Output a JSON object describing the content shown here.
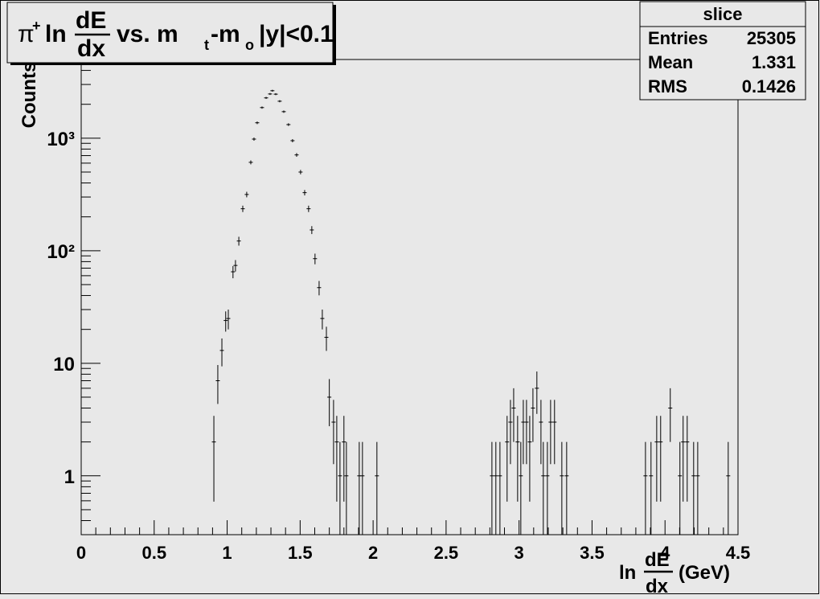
{
  "chart_data": {
    "type": "scatter",
    "title": {
      "pi": "π",
      "charge": "+",
      "ln": "ln",
      "num": "dE",
      "den": "dx",
      "vs": "vs. m",
      "sub1": "t",
      "dash": "-m",
      "sub2": "o",
      "cut": "|y|<0.1"
    },
    "x_label": {
      "ln": "ln",
      "num": "dE",
      "den": "dx",
      "unit": "(GeV)"
    },
    "y_label": "Counts",
    "stats": {
      "title": "slice",
      "rows": [
        [
          "Entries",
          "25305"
        ],
        [
          "Mean",
          "1.331"
        ],
        [
          "RMS",
          "0.1426"
        ]
      ]
    },
    "log_y": true,
    "color": "#000000",
    "xlim": [
      0,
      4.5
    ],
    "ylim": [
      0.3,
      5000
    ],
    "xticks": [
      0,
      0.5,
      1,
      1.5,
      2,
      2.5,
      3,
      3.5,
      4,
      4.5
    ],
    "yticks": [
      1,
      10,
      {
        "value": 100,
        "label": "10²"
      },
      {
        "value": 1000,
        "label": "10³"
      }
    ],
    "x": [
      0.909,
      0.936,
      0.964,
      0.99,
      1.008,
      1.04,
      1.057,
      1.08,
      1.107,
      1.134,
      1.162,
      1.184,
      1.206,
      1.239,
      1.267,
      1.294,
      1.31,
      1.333,
      1.36,
      1.388,
      1.42,
      1.448,
      1.476,
      1.503,
      1.531,
      1.558,
      1.58,
      1.602,
      1.63,
      1.652,
      1.68,
      1.7,
      1.729,
      1.751,
      1.773,
      1.8,
      1.817,
      1.905,
      1.927,
      2.026,
      2.814,
      2.841,
      2.869,
      2.918,
      2.941,
      2.963,
      2.99,
      3.012,
      3.029,
      3.051,
      3.073,
      3.095,
      3.122,
      3.15,
      3.166,
      3.194,
      3.216,
      3.243,
      3.293,
      3.326,
      3.866,
      3.904,
      3.943,
      3.97,
      4.036,
      4.102,
      4.124,
      4.152,
      4.196,
      4.224,
      4.433
    ],
    "values": [
      2,
      7,
      13,
      24,
      25,
      65,
      74,
      122,
      236,
      316,
      610,
      981,
      1370,
      1870,
      2280,
      2470,
      2640,
      2460,
      2130,
      1720,
      1320,
      950,
      710,
      500,
      328,
      236,
      153,
      85,
      47,
      25,
      17,
      5,
      3,
      2,
      1,
      2,
      1,
      1,
      1,
      1,
      1,
      1,
      1,
      2,
      3,
      4,
      2,
      1,
      3,
      3,
      2,
      4,
      6,
      3,
      1,
      1,
      3,
      3,
      1,
      1,
      1,
      1,
      2,
      2,
      4,
      1,
      2,
      2,
      1,
      1,
      1
    ],
    "errors": [
      1.41,
      2.65,
      3.61,
      4.9,
      5,
      8.06,
      8.6,
      11.05,
      15.36,
      17.78,
      24.7,
      31.32,
      37.01,
      43.24,
      47.75,
      49.7,
      51.38,
      49.6,
      46.15,
      41.47,
      36.33,
      30.82,
      26.65,
      22.36,
      18.11,
      15.36,
      12.37,
      9.22,
      6.86,
      5,
      4.12,
      2.24,
      1.73,
      1.41,
      1,
      1.41,
      1,
      1,
      1,
      1,
      1,
      1,
      1,
      1.41,
      1.73,
      2,
      1.41,
      1,
      1.73,
      1.73,
      1.41,
      2,
      2.45,
      1.73,
      1,
      1,
      1.73,
      1.73,
      1,
      1,
      1,
      1,
      1.41,
      1.41,
      2,
      1,
      1.41,
      1.41,
      1,
      1,
      1
    ]
  }
}
